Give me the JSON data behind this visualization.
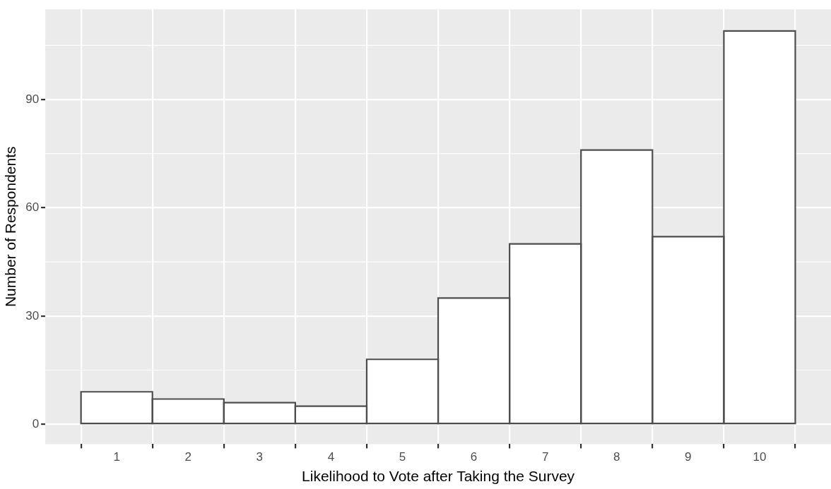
{
  "chart_data": {
    "type": "histogram",
    "xlabel": "Likelihood to Vote after Taking the Survey",
    "ylabel": "Number of Respondents",
    "bins": [
      0.5,
      1.5,
      2.5,
      3.5,
      4.5,
      5.5,
      6.5,
      7.5,
      8.5,
      9.5,
      10.5
    ],
    "values": [
      9,
      7,
      6,
      5,
      18,
      35,
      50,
      76,
      52,
      109
    ],
    "color": "#ffffff",
    "xlim": [
      0,
      11
    ],
    "xticks": [
      1,
      2,
      3,
      4,
      5,
      6,
      7,
      8,
      9,
      10
    ],
    "ylim": [
      -5.5,
      115
    ],
    "yticks": [
      0,
      30,
      60,
      90
    ],
    "grid": true
  }
}
